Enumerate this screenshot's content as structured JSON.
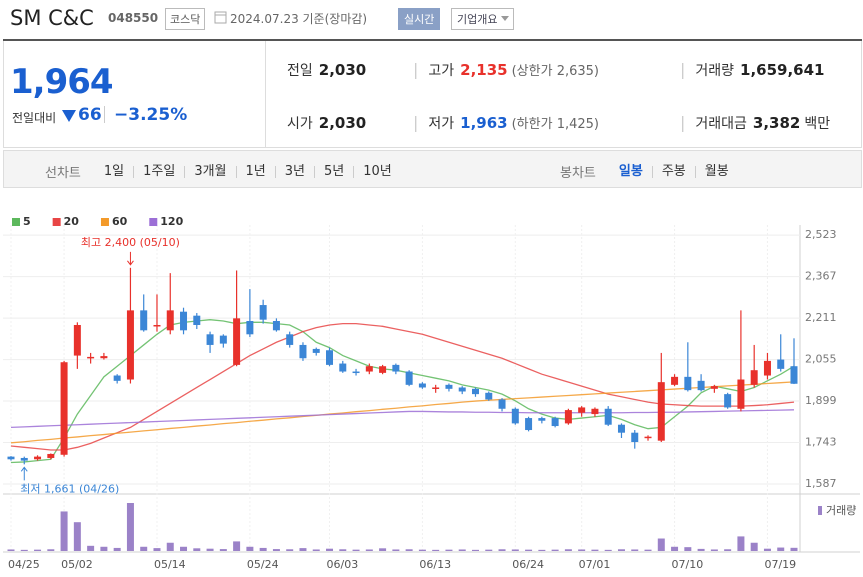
{
  "header": {
    "name": "SM C&C",
    "code": "048550",
    "market": "코스닥",
    "date": "2024.07.23 기준(장마감)",
    "realtime": "실시간",
    "company": "기업개요"
  },
  "quote": {
    "price": "1,964",
    "change_label": "전일대비",
    "change": "66",
    "change_rate": "−3.25%",
    "items": [
      {
        "label": "전일",
        "value": "2,030"
      },
      {
        "label": "고가",
        "value": "2,135",
        "note": "(상한가 2,635)"
      },
      {
        "label": "거래량",
        "value": "1,659,641"
      },
      {
        "label": "시가",
        "value": "2,030"
      },
      {
        "label": "저가",
        "value": "1,963",
        "note": "(하한가 1,425)"
      },
      {
        "label": "거래대금",
        "value": "3,382",
        "unit": "백만"
      }
    ]
  },
  "tabs": {
    "line_label": "선차트",
    "line_periods": [
      "1일",
      "1주일",
      "3개월",
      "1년",
      "3년",
      "5년",
      "10년"
    ],
    "candle_label": "봉차트",
    "candle_periods": [
      "일봉",
      "주봉",
      "월봉"
    ]
  },
  "chart_data": {
    "type": "candlestick",
    "categories": [
      "04/25",
      null,
      null,
      null,
      "05/02",
      null,
      null,
      null,
      null,
      null,
      null,
      "05/14",
      null,
      null,
      null,
      null,
      null,
      null,
      "05/24",
      null,
      null,
      null,
      null,
      null,
      "06/03",
      null,
      null,
      null,
      null,
      null,
      null,
      "06/13",
      null,
      null,
      null,
      null,
      null,
      null,
      "06/24",
      null,
      null,
      null,
      null,
      "07/01",
      null,
      null,
      null,
      null,
      null,
      null,
      "07/10",
      null,
      null,
      null,
      null,
      null,
      null,
      "07/19",
      null,
      null
    ],
    "open": [
      1690,
      1685,
      1680,
      1685,
      1697,
      2070,
      2060,
      2060,
      1995,
      1980,
      2240,
      2180,
      2165,
      2235,
      2220,
      2150,
      2145,
      2035,
      2200,
      2260,
      2200,
      2150,
      2110,
      2095,
      2090,
      2040,
      2010,
      2010,
      2005,
      2035,
      2010,
      1965,
      1945,
      1960,
      1950,
      1945,
      1930,
      1905,
      1870,
      1835,
      1835,
      1835,
      1815,
      1855,
      1850,
      1870,
      1810,
      1780,
      1760,
      1750,
      1960,
      1990,
      1975,
      1945,
      1925,
      1870,
      1960,
      1995,
      2055,
      2030
    ],
    "high": [
      1692,
      1690,
      1695,
      1702,
      2050,
      2195,
      2080,
      2080,
      2000,
      2400,
      2300,
      2300,
      2380,
      2250,
      2230,
      2160,
      2150,
      2390,
      2320,
      2280,
      2210,
      2160,
      2120,
      2100,
      2100,
      2050,
      2020,
      2040,
      2035,
      2040,
      2015,
      1970,
      1960,
      1965,
      1955,
      1950,
      1935,
      1910,
      1875,
      1840,
      1840,
      1840,
      1870,
      1880,
      1875,
      1880,
      1815,
      1790,
      1770,
      2080,
      2000,
      2120,
      2000,
      1960,
      1930,
      2240,
      2110,
      2080,
      2150,
      2135
    ],
    "low": [
      1675,
      1661,
      1675,
      1680,
      1690,
      2020,
      2040,
      2055,
      1965,
      1965,
      2160,
      2160,
      2150,
      2150,
      2170,
      2080,
      2100,
      2030,
      2140,
      2190,
      2160,
      2100,
      2050,
      2070,
      2030,
      2005,
      1995,
      2000,
      2000,
      2000,
      1955,
      1945,
      1930,
      1935,
      1925,
      1915,
      1900,
      1860,
      1810,
      1785,
      1815,
      1800,
      1810,
      1840,
      1840,
      1805,
      1760,
      1720,
      1750,
      1745,
      1955,
      1935,
      1935,
      1930,
      1870,
      1860,
      1950,
      1980,
      2010,
      1963
    ],
    "close": [
      1680,
      1675,
      1690,
      1700,
      2045,
      2185,
      2065,
      2068,
      1975,
      2240,
      2165,
      2185,
      2240,
      2165,
      2185,
      2110,
      2115,
      2210,
      2150,
      2205,
      2165,
      2110,
      2060,
      2080,
      2035,
      2010,
      2005,
      2030,
      2030,
      2010,
      1960,
      1950,
      1950,
      1945,
      1935,
      1925,
      1905,
      1870,
      1815,
      1790,
      1825,
      1805,
      1865,
      1875,
      1870,
      1810,
      1780,
      1745,
      1765,
      1970,
      1990,
      1940,
      1940,
      1955,
      1875,
      1980,
      2015,
      2050,
      2020,
      1964
    ],
    "up_color": "#e8312b",
    "down_color": "#3b86d6",
    "series": [
      {
        "name": "5",
        "color": "#5cb85c",
        "values": [
          1668,
          1670,
          1675,
          1680,
          1760,
          1850,
          1920,
          1990,
          2030,
          2070,
          2110,
          2150,
          2185,
          2195,
          2200,
          2205,
          2200,
          2190,
          2195,
          2195,
          2190,
          2185,
          2160,
          2120,
          2100,
          2070,
          2050,
          2030,
          2020,
          2015,
          2005,
          1995,
          1985,
          1975,
          1960,
          1950,
          1940,
          1925,
          1900,
          1870,
          1850,
          1835,
          1830,
          1835,
          1840,
          1845,
          1830,
          1810,
          1795,
          1800,
          1840,
          1880,
          1930,
          1955,
          1945,
          1935,
          1950,
          1975,
          2000,
          2030
        ]
      },
      {
        "name": "20",
        "color": "#e84545",
        "values": [
          1730,
          1725,
          1720,
          1715,
          1715,
          1725,
          1740,
          1760,
          1780,
          1800,
          1830,
          1860,
          1890,
          1920,
          1950,
          1980,
          2010,
          2040,
          2070,
          2095,
          2120,
          2140,
          2160,
          2175,
          2185,
          2190,
          2190,
          2185,
          2180,
          2170,
          2160,
          2150,
          2135,
          2120,
          2105,
          2090,
          2075,
          2060,
          2040,
          2020,
          2000,
          1985,
          1970,
          1955,
          1940,
          1925,
          1915,
          1905,
          1895,
          1888,
          1885,
          1882,
          1880,
          1880,
          1880,
          1880,
          1882,
          1885,
          1890,
          1895
        ]
      },
      {
        "name": "60",
        "color": "#f39a2a",
        "values": [
          1742,
          1746,
          1751,
          1755,
          1760,
          1764,
          1769,
          1773,
          1778,
          1782,
          1787,
          1791,
          1796,
          1800,
          1805,
          1809,
          1814,
          1818,
          1823,
          1827,
          1832,
          1836,
          1841,
          1845,
          1850,
          1854,
          1859,
          1863,
          1868,
          1872,
          1877,
          1881,
          1886,
          1890,
          1895,
          1899,
          1902,
          1905,
          1908,
          1911,
          1914,
          1917,
          1920,
          1923,
          1926,
          1929,
          1932,
          1935,
          1938,
          1941,
          1944,
          1947,
          1950,
          1953,
          1956,
          1959,
          1962,
          1965,
          1968,
          1971
        ]
      },
      {
        "name": "120",
        "color": "#9c6fd6",
        "values": [
          1800,
          1802,
          1804,
          1806,
          1808,
          1810,
          1812,
          1814,
          1816,
          1818,
          1820,
          1822,
          1824,
          1826,
          1828,
          1830,
          1832,
          1834,
          1836,
          1838,
          1840,
          1842,
          1844,
          1846,
          1848,
          1850,
          1852,
          1854,
          1856,
          1858,
          1860,
          1860,
          1859,
          1858,
          1858,
          1857,
          1857,
          1856,
          1856,
          1855,
          1855,
          1855,
          1855,
          1855,
          1855,
          1855,
          1855,
          1856,
          1856,
          1857,
          1857,
          1858,
          1859,
          1860,
          1861,
          1862,
          1863,
          1864,
          1865,
          1866
        ]
      }
    ],
    "volume": {
      "name": "거래량",
      "color": "#9b82c8",
      "values": [
        800000,
        600000,
        700000,
        900000,
        20600000,
        15000000,
        2700000,
        2200000,
        1600000,
        25000000,
        2200000,
        1500000,
        4300000,
        2200000,
        1400000,
        1200000,
        1000000,
        5000000,
        2200000,
        1600000,
        1000000,
        900000,
        1500000,
        800000,
        1200000,
        900000,
        700000,
        800000,
        1400000,
        800000,
        900000,
        700000,
        600000,
        700000,
        800000,
        600000,
        700000,
        900000,
        800000,
        700000,
        600000,
        700000,
        900000,
        800000,
        700000,
        600000,
        900000,
        800000,
        700000,
        6500000,
        2200000,
        2000000,
        1100000,
        800000,
        900000,
        7600000,
        4300000,
        1200000,
        1800000,
        1659641
      ]
    },
    "ylim": [
      1557,
      2561
    ],
    "yticks": [
      {
        "value": 1587,
        "label": "1,587"
      },
      {
        "value": 1743,
        "label": "1,743"
      },
      {
        "value": 1899,
        "label": "1,899"
      },
      {
        "value": 2055,
        "label": "2,055"
      },
      {
        "value": 2211,
        "label": "2,211"
      },
      {
        "value": 2367,
        "label": "2,367"
      },
      {
        "value": 2523,
        "label": "2,523"
      }
    ],
    "grid": true,
    "annotations": [
      {
        "text": "최고 2,400 (05/10)",
        "color": "#e8312b"
      },
      {
        "text": "최저 1,661 (04/26)",
        "color": "#3b86d6"
      }
    ]
  }
}
